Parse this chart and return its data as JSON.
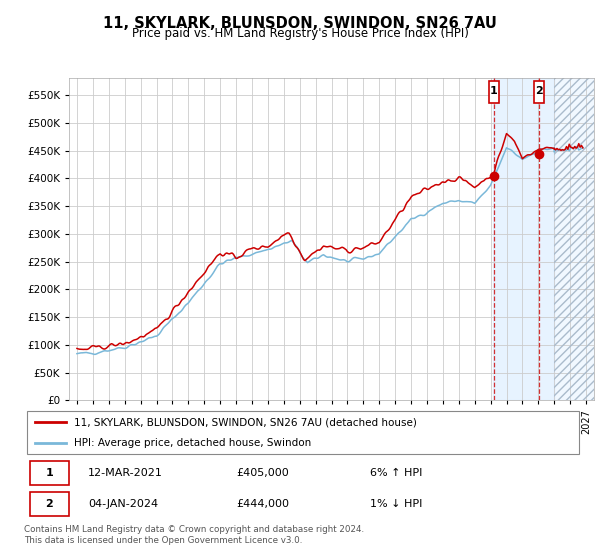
{
  "title": "11, SKYLARK, BLUNSDON, SWINDON, SN26 7AU",
  "subtitle": "Price paid vs. HM Land Registry's House Price Index (HPI)",
  "legend_line1": "11, SKYLARK, BLUNSDON, SWINDON, SN26 7AU (detached house)",
  "legend_line2": "HPI: Average price, detached house, Swindon",
  "annotation1_date": "12-MAR-2021",
  "annotation1_price": "£405,000",
  "annotation1_hpi": "6% ↑ HPI",
  "annotation2_date": "04-JAN-2024",
  "annotation2_price": "£444,000",
  "annotation2_hpi": "1% ↓ HPI",
  "footer": "Contains HM Land Registry data © Crown copyright and database right 2024.\nThis data is licensed under the Open Government Licence v3.0.",
  "hpi_color": "#7ab8d9",
  "price_color": "#cc0000",
  "annotation_color": "#cc0000",
  "grid_color": "#cccccc",
  "ylim": [
    0,
    580000
  ],
  "yticks": [
    0,
    50000,
    100000,
    150000,
    200000,
    250000,
    300000,
    350000,
    400000,
    450000,
    500000,
    550000
  ],
  "xlim_start": 1994.5,
  "xlim_end": 2027.5,
  "sale1_x": 2021.2,
  "sale1_y": 405000,
  "sale2_x": 2024.04,
  "sale2_y": 444000,
  "shade_start": 2021.15,
  "hatch_start": 2025.0
}
